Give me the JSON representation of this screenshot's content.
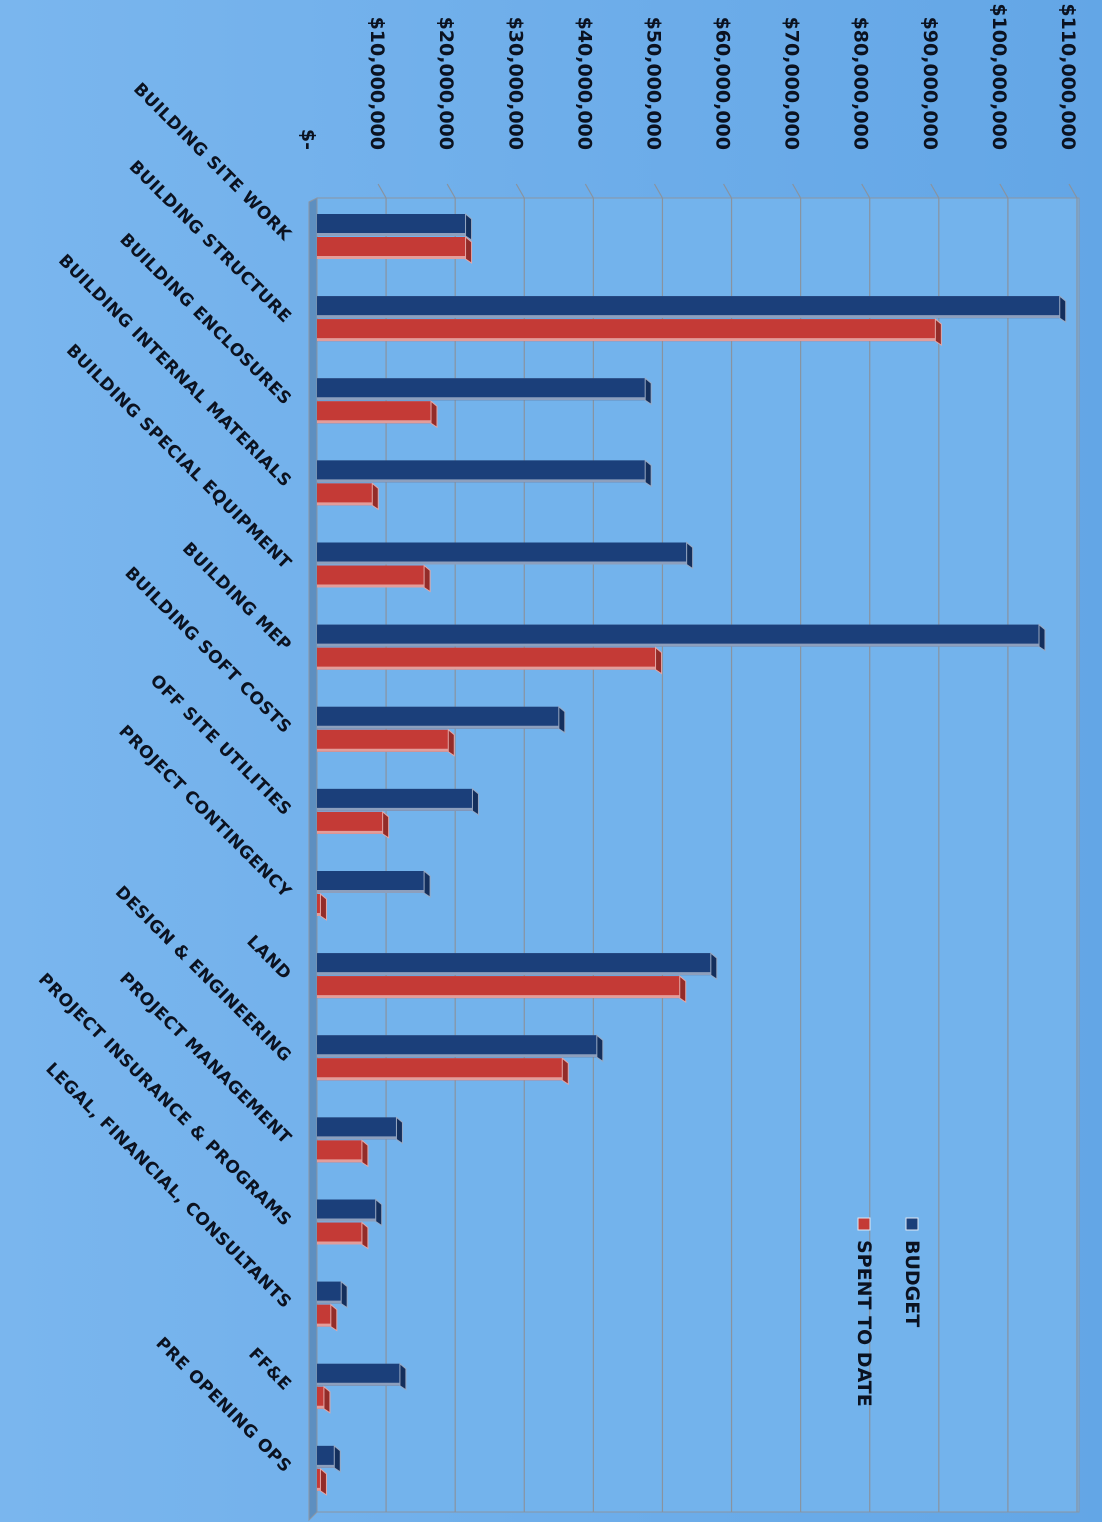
{
  "chart_data": {
    "type": "bar",
    "orientation": "horizontal",
    "categories": [
      "BUILDING SITE WORK",
      "BUILDING  STRUCTURE",
      "BUILDING ENCLOSURES",
      "BUILDING INTERNAL MATERIALS",
      "BUILDING SPECIAL EQUIPMENT",
      "BUILDING MEP",
      "BUILDING SOFT COSTS",
      "OFF SITE UTILITIES",
      "PROJECT CONTINGENCY",
      "LAND",
      "DESIGN & ENGINEERING",
      "PROJECT MANAGEMENT",
      "PROJECT INSURANCE & PROGRAMS",
      "LEGAL, FINANCIAL, CONSULTANTS",
      "FF&E",
      "PRE OPENING OPS"
    ],
    "series": [
      {
        "name": "BUDGET",
        "color": "#1b3f7a",
        "values": [
          21500000,
          107500000,
          47500000,
          47500000,
          53500000,
          104500000,
          35000000,
          22500000,
          15500000,
          57000000,
          40500000,
          11500000,
          8500000,
          3500000,
          12000000,
          2500000
        ]
      },
      {
        "name": "SPENT TO DATE",
        "color": "#c43a36",
        "values": [
          21500000,
          89500000,
          16500000,
          8000000,
          15500000,
          49000000,
          19000000,
          9500000,
          500000,
          52500000,
          35500000,
          6500000,
          6500000,
          2000000,
          1000000,
          500000
        ]
      }
    ],
    "value_axis": {
      "ticks": [
        "$-",
        "$10,000,000",
        "$20,000,000",
        "$30,000,000",
        "$40,000,000",
        "$50,000,000",
        "$60,000,000",
        "$70,000,000",
        "$80,000,000",
        "$90,000,000",
        "$100,000,000",
        "$110,000,000"
      ],
      "range": [
        0,
        110000000
      ]
    },
    "grid": true,
    "legend_position": "inside-lower-right",
    "title": "",
    "xlabel": "",
    "ylabel": "",
    "style": "3d-bars",
    "rotated": true
  }
}
